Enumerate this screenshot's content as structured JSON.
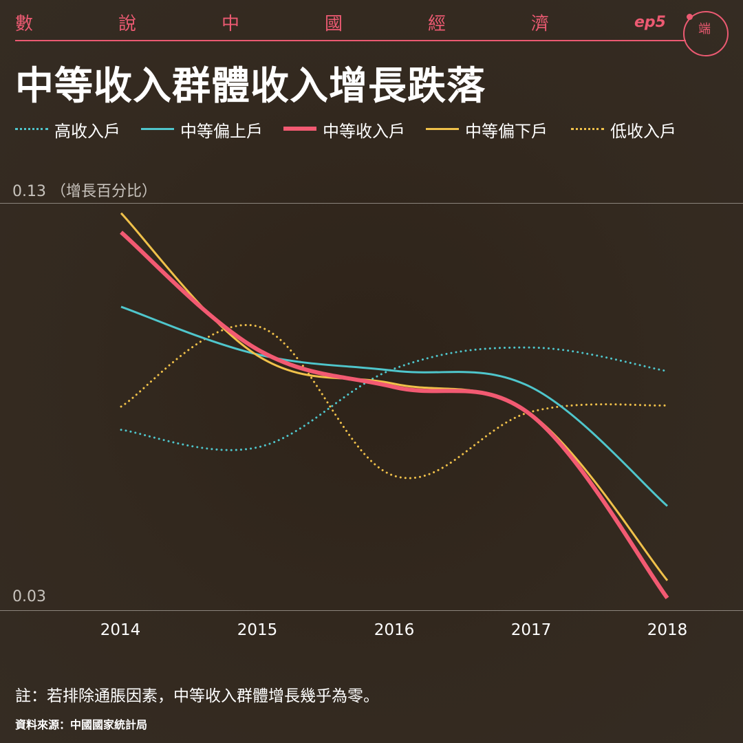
{
  "header": {
    "series_chars": [
      "數",
      "說",
      "中",
      "國",
      "經",
      "濟"
    ],
    "episode": "ep5",
    "logo_text": "端",
    "brand_color": "#ec5a72"
  },
  "title": "中等收入群體收入增長跌落",
  "note": "註：若排除通脹因素，中等收入群體增長幾乎為零。",
  "source": "資料來源：中國國家統計局",
  "chart_data": {
    "type": "line",
    "ylabel": "（增長百分比）",
    "ylim": [
      0.03,
      0.13
    ],
    "y_ticks": [
      "0.13",
      "0.03"
    ],
    "categories": [
      "2014",
      "2015",
      "2016",
      "2017",
      "2018"
    ],
    "x": [
      2014,
      2015,
      2016,
      2017,
      2018
    ],
    "grid": "horizontal lines at 0.13 and 0.03",
    "legend_position": "top",
    "series": [
      {
        "name": "高收入戶",
        "color": "#4fc6cc",
        "style": "dotted",
        "values": [
          0.0743,
          0.07,
          0.0893,
          0.0945,
          0.0887
        ]
      },
      {
        "name": "中等偏上戶",
        "color": "#4fc6cc",
        "style": "solid",
        "values": [
          0.1045,
          0.0928,
          0.0888,
          0.0848,
          0.0556
        ]
      },
      {
        "name": "中等收入戶",
        "color": "#f25a72",
        "style": "solid",
        "width": 6,
        "values": [
          0.1228,
          0.094,
          0.0848,
          0.078,
          0.033
        ]
      },
      {
        "name": "中等偏下戶",
        "color": "#f0c14a",
        "style": "solid",
        "values": [
          0.1275,
          0.0925,
          0.0856,
          0.0782,
          0.0373
        ]
      },
      {
        "name": "低收入戶",
        "color": "#f0c14a",
        "style": "dotted",
        "values": [
          0.08,
          0.0997,
          0.063,
          0.0787,
          0.0803
        ]
      }
    ]
  }
}
